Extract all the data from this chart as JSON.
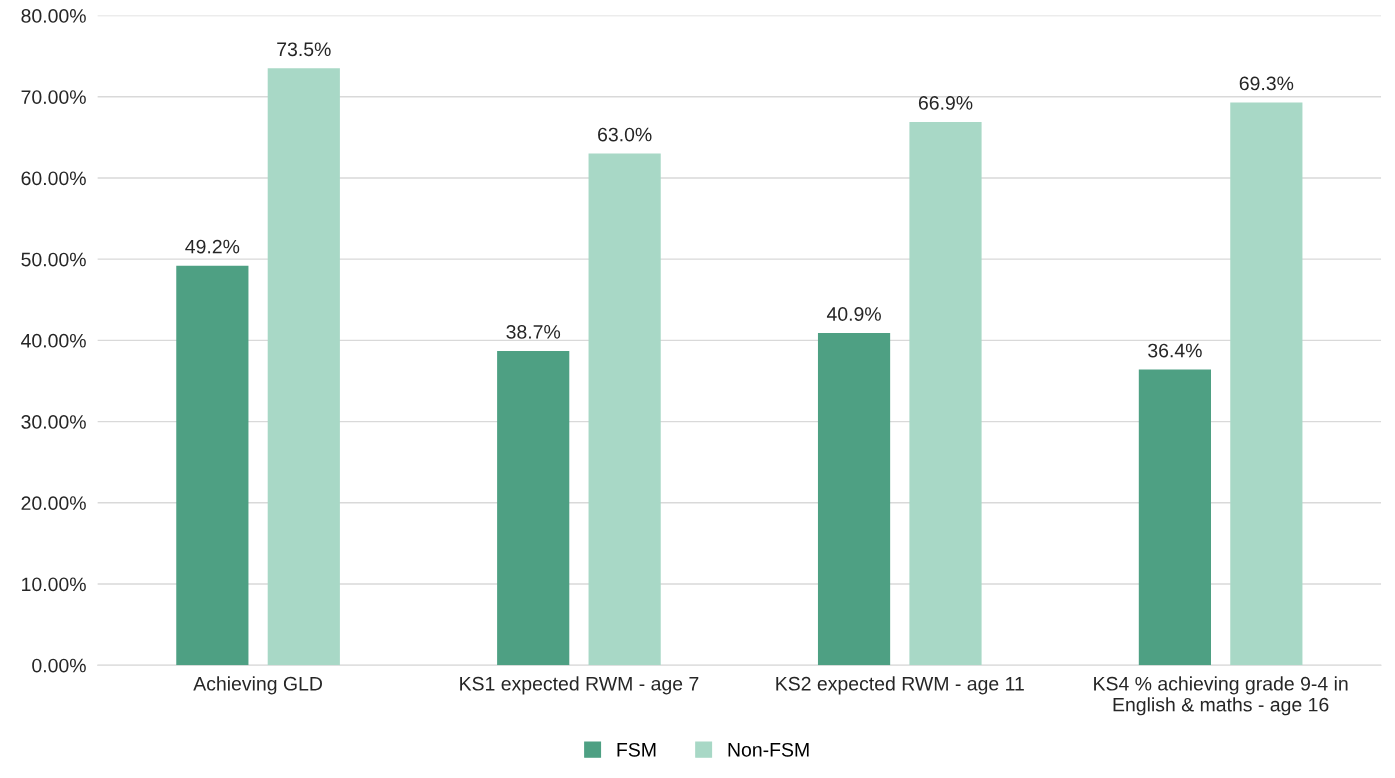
{
  "chart_data": {
    "type": "bar",
    "categories": [
      "Achieving GLD",
      "KS1 expected RWM - age 7",
      "KS2 expected RWM - age 11",
      "KS4 % achieving grade 9-4 in\nEnglish & maths - age 16"
    ],
    "series": [
      {
        "name": "FSM",
        "color": "#4ea083",
        "values": [
          49.2,
          38.7,
          40.9,
          36.4
        ],
        "value_labels": [
          "49.2%",
          "38.7%",
          "40.9%",
          "36.4%"
        ]
      },
      {
        "name": "Non-FSM",
        "color": "#a8d8c6",
        "values": [
          73.5,
          63.0,
          66.9,
          69.3
        ],
        "value_labels": [
          "73.5%",
          "63.0%",
          "66.9%",
          "69.3%"
        ]
      }
    ],
    "ylim": [
      0,
      80
    ],
    "yticks": [
      {
        "value": 0,
        "label": "0.00%"
      },
      {
        "value": 10,
        "label": "10.00%"
      },
      {
        "value": 20,
        "label": "20.00%"
      },
      {
        "value": 30,
        "label": "30.00%"
      },
      {
        "value": 40,
        "label": "40.00%"
      },
      {
        "value": 50,
        "label": "50.00%"
      },
      {
        "value": 60,
        "label": "60.00%"
      },
      {
        "value": 70,
        "label": "70.00%"
      },
      {
        "value": 80,
        "label": "80.00%"
      }
    ],
    "grid": "y",
    "legend": "bottom"
  }
}
